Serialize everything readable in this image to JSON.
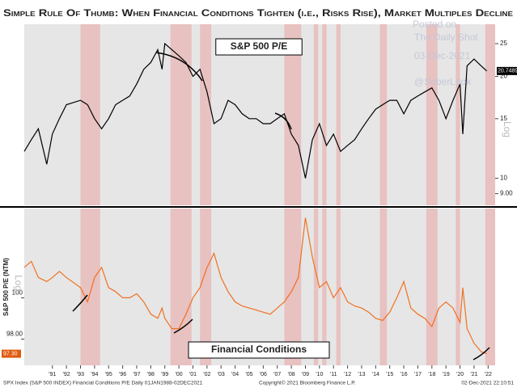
{
  "title": "Simple Rule Of Thumb: When Financial Conditions Tighten (i.e., Risks Rise), Market Multiples Decline",
  "watermark": {
    "posted": "Posted on",
    "site": "The Daily Shot",
    "date": "03-Dec-2021",
    "handle": "@SoberLook"
  },
  "footer": {
    "source": "SPX Index (S&P 500 INDEX) Financial Conditions P/E  Daily 01JAN1988-02DEC2021",
    "copyright": "Copyright© 2021 Bloomberg Finance L.P.",
    "timestamp": "02-Dec-2021 22:10:51"
  },
  "shaded_periods": [
    [
      1993.0,
      1994.4
    ],
    [
      1999.4,
      2000.9
    ],
    [
      2001.5,
      2002.3
    ],
    [
      2007.5,
      2008.7
    ],
    [
      2009.6,
      2009.9
    ],
    [
      2010.2,
      2010.5
    ],
    [
      2011.2,
      2011.5
    ],
    [
      2014.3,
      2014.8
    ],
    [
      2017.6,
      2018.4
    ],
    [
      2019.7,
      2020.0
    ],
    [
      2021.8,
      2022.5
    ]
  ],
  "chart_data": [
    {
      "type": "line",
      "title": "S&P 500 P/E",
      "color": "#000000",
      "log_scale": true,
      "log_label": "Log",
      "xlim": [
        1989,
        2022.5
      ],
      "ylim": [
        8.5,
        27
      ],
      "yticks": [
        25,
        20,
        15,
        10,
        {
          "value": 9,
          "label": "9.00"
        }
      ],
      "x": [
        1989,
        1989.5,
        1990,
        1990.6,
        1991,
        1991.5,
        1992,
        1993,
        1993.5,
        1994,
        1994.5,
        1995,
        1995.5,
        1996,
        1996.5,
        1997,
        1997.5,
        1998,
        1998.5,
        1998.8,
        1999,
        1999.5,
        2000,
        2000.5,
        2001,
        2001.5,
        2002,
        2002.5,
        2003,
        2003.5,
        2004,
        2004.5,
        2005,
        2005.5,
        2006,
        2006.5,
        2007,
        2007.5,
        2008,
        2008.5,
        2009,
        2009.5,
        2010,
        2010.5,
        2011,
        2011.5,
        2012,
        2012.5,
        2013,
        2013.5,
        2014,
        2014.5,
        2015,
        2015.5,
        2016,
        2016.5,
        2017,
        2017.5,
        2018,
        2018.5,
        2019,
        2019.5,
        2020,
        2020.2,
        2020.5,
        2021,
        2021.5,
        2021.9
      ],
      "values": [
        12,
        13,
        14,
        11,
        13.5,
        15,
        16.5,
        17,
        16.5,
        15,
        14,
        15,
        16.5,
        17,
        17.5,
        19,
        21,
        22,
        24,
        21,
        25,
        24,
        23,
        22,
        20,
        21,
        18,
        14.5,
        15,
        17,
        16.5,
        15.5,
        15,
        15,
        14.5,
        14.5,
        15,
        15.5,
        13.5,
        12.5,
        10,
        13,
        14.5,
        12.5,
        13.5,
        12,
        12.5,
        13,
        14,
        15,
        16,
        16.5,
        17,
        17,
        15.5,
        17,
        17.5,
        18,
        18.5,
        17,
        15,
        17,
        19,
        13.5,
        21.5,
        22.5,
        21.5,
        20.7489
      ],
      "value_labels": [
        null,
        null,
        null,
        null,
        null,
        null,
        null,
        null,
        null,
        null,
        null,
        null,
        null,
        null,
        null,
        null,
        null,
        null,
        null,
        null,
        null,
        null,
        null,
        null,
        null,
        null,
        null,
        null,
        null,
        null,
        null,
        null,
        null,
        null,
        null,
        null,
        null,
        null,
        null,
        null,
        null,
        null,
        null,
        null,
        null,
        null,
        null,
        null,
        null,
        null,
        null,
        null,
        null,
        null,
        null,
        null,
        null,
        null,
        null,
        null,
        null,
        null,
        null,
        null,
        null,
        null,
        null,
        "20.7489"
      ]
    },
    {
      "type": "line",
      "title": "Financial Conditions",
      "color": "#f07020",
      "log_scale": true,
      "log_label": "Log",
      "y_label": "S&P 500 P/E (NTM)",
      "xlim": [
        1989,
        2022.5
      ],
      "ylim": [
        96.9,
        104.3
      ],
      "yticks": [
        100,
        {
          "value": 98,
          "label": "98.00"
        }
      ],
      "xticks": [
        {
          "value": 1991,
          "label": "'91"
        },
        {
          "value": 1992,
          "label": "'92"
        },
        {
          "value": 1993,
          "label": "'93"
        },
        {
          "value": 1994,
          "label": "'94"
        },
        {
          "value": 1995,
          "label": "'95"
        },
        {
          "value": 1996,
          "label": "'96"
        },
        {
          "value": 1997,
          "label": "'97"
        },
        {
          "value": 1998,
          "label": "'98"
        },
        {
          "value": 1999,
          "label": "'99"
        },
        {
          "value": 2000,
          "label": "'00"
        },
        {
          "value": 2001,
          "label": "'01"
        },
        {
          "value": 2002,
          "label": "'02"
        },
        {
          "value": 2003,
          "label": "'03"
        },
        {
          "value": 2004,
          "label": "'04"
        },
        {
          "value": 2005,
          "label": "'05"
        },
        {
          "value": 2006,
          "label": "'06"
        },
        {
          "value": 2007,
          "label": "'07"
        },
        {
          "value": 2008,
          "label": "'08"
        },
        {
          "value": 2009,
          "label": "'09"
        },
        {
          "value": 2010,
          "label": "'10"
        },
        {
          "value": 2011,
          "label": "'11"
        },
        {
          "value": 2012,
          "label": "'12"
        },
        {
          "value": 2013,
          "label": "'13"
        },
        {
          "value": 2014,
          "label": "'14"
        },
        {
          "value": 2015,
          "label": "'15"
        },
        {
          "value": 2016,
          "label": "'16"
        },
        {
          "value": 2017,
          "label": "'17"
        },
        {
          "value": 2018,
          "label": "'18"
        },
        {
          "value": 2019,
          "label": "'19"
        },
        {
          "value": 2020,
          "label": "'20"
        },
        {
          "value": 2021,
          "label": "'21"
        },
        {
          "value": 2022,
          "label": "'22"
        }
      ],
      "x": [
        1989,
        1989.5,
        1990,
        1990.6,
        1991,
        1991.5,
        1992,
        1993,
        1993.5,
        1994,
        1994.5,
        1995,
        1995.5,
        1996,
        1996.5,
        1997,
        1997.5,
        1998,
        1998.5,
        1998.8,
        1999,
        1999.5,
        2000,
        2000.5,
        2001,
        2001.5,
        2002,
        2002.5,
        2003,
        2003.5,
        2004,
        2004.5,
        2005,
        2005.5,
        2006,
        2006.5,
        2007,
        2007.5,
        2008,
        2008.5,
        2009,
        2009.5,
        2010,
        2010.5,
        2011,
        2011.5,
        2012,
        2012.5,
        2013,
        2013.5,
        2014,
        2014.5,
        2015,
        2015.5,
        2016,
        2016.5,
        2017,
        2017.5,
        2018,
        2018.5,
        2019,
        2019.5,
        2020,
        2020.2,
        2020.5,
        2021,
        2021.5,
        2021.9
      ],
      "values": [
        101.5,
        101.8,
        101,
        100.8,
        101,
        101.3,
        101,
        100.5,
        99.8,
        101,
        101.5,
        100.5,
        100.3,
        100,
        100,
        100.2,
        99.8,
        99.2,
        99,
        99.5,
        99,
        98.5,
        98.5,
        99.2,
        100,
        100.5,
        101.5,
        102.2,
        101,
        100.3,
        99.8,
        99.6,
        99.5,
        99.4,
        99.3,
        99.2,
        99.5,
        99.8,
        100.3,
        101,
        104,
        102,
        100.5,
        100.8,
        100,
        100.5,
        99.8,
        99.6,
        99.5,
        99.3,
        99,
        98.9,
        99.3,
        100,
        100.8,
        99.5,
        99.2,
        99,
        98.6,
        99.5,
        99.8,
        99.5,
        98.8,
        100.5,
        98.5,
        97.8,
        97.4,
        97.3
      ],
      "value_labels": [
        null,
        null,
        null,
        null,
        null,
        null,
        null,
        null,
        null,
        null,
        null,
        null,
        null,
        null,
        null,
        null,
        null,
        null,
        null,
        null,
        null,
        null,
        null,
        null,
        null,
        null,
        null,
        null,
        null,
        null,
        null,
        null,
        null,
        null,
        null,
        null,
        null,
        null,
        null,
        null,
        null,
        null,
        null,
        null,
        null,
        null,
        null,
        null,
        null,
        null,
        null,
        null,
        null,
        null,
        null,
        null,
        null,
        null,
        null,
        null,
        null,
        null,
        null,
        null,
        null,
        null,
        null,
        "97.30"
      ]
    }
  ]
}
